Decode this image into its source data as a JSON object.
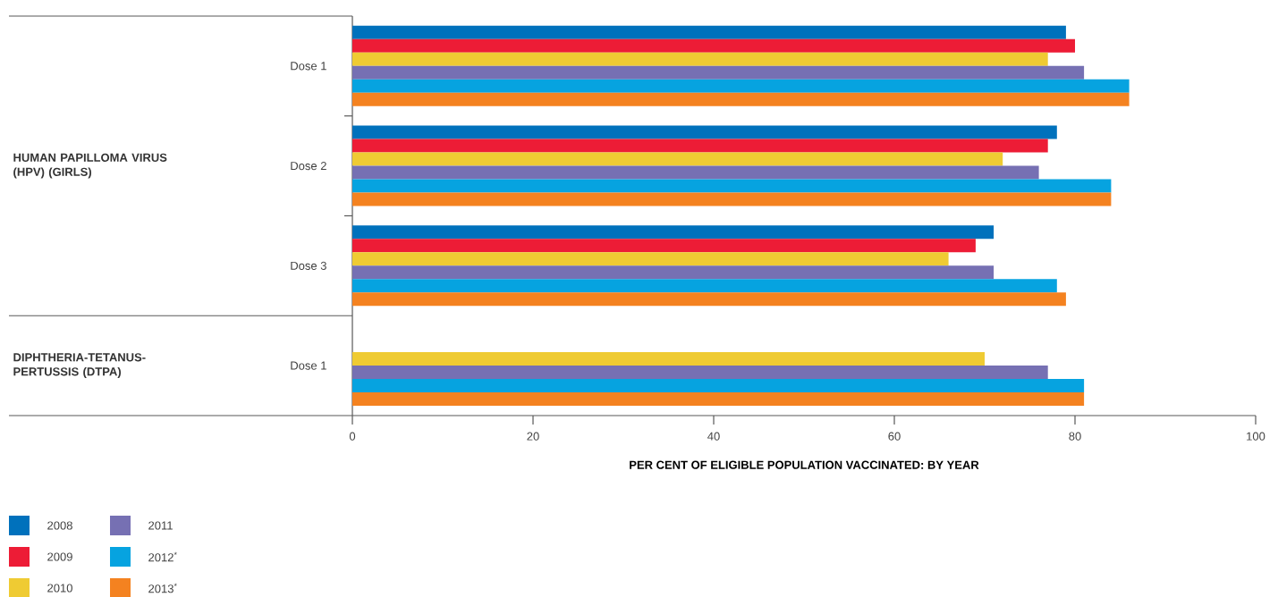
{
  "chart_data": {
    "type": "bar",
    "orientation": "horizontal",
    "categories": [
      "Dose 1",
      "Dose 2",
      "Dose 3",
      "Dose 1"
    ],
    "series": [
      {
        "name": "2008",
        "color": "#0071bc",
        "values": [
          79,
          78,
          71,
          null
        ]
      },
      {
        "name": "2009",
        "color": "#ed1c36",
        "values": [
          80,
          77,
          69,
          null
        ]
      },
      {
        "name": "2010",
        "color": "#efcb33",
        "values": [
          77,
          72,
          66,
          70
        ]
      },
      {
        "name": "2011",
        "color": "#7670b3",
        "values": [
          81,
          76,
          71,
          77
        ]
      },
      {
        "name": "2012$^{*}$",
        "color": "#06a3e0",
        "values": [
          86,
          84,
          78,
          81
        ]
      },
      {
        "name": "2013$^{*}$",
        "color": "#f48220",
        "values": [
          86,
          84,
          79,
          81
        ]
      }
    ],
    "xlim": [
      0,
      100
    ],
    "xticks": [
      0,
      20,
      40,
      60,
      80,
      100
    ],
    "xlabel": "PER CENT OF ELIGIBLE POPULATION VACCINATED: BY YEAR",
    "annotations": [
      "HUMAN PAPILLOMA VIRUS (HPV) (GIRLS)",
      "DIPHTHERIA-TETANUS-PERTUSSIS (DTPA)"
    ],
    "legend": "bottom left",
    "grid": false
  }
}
